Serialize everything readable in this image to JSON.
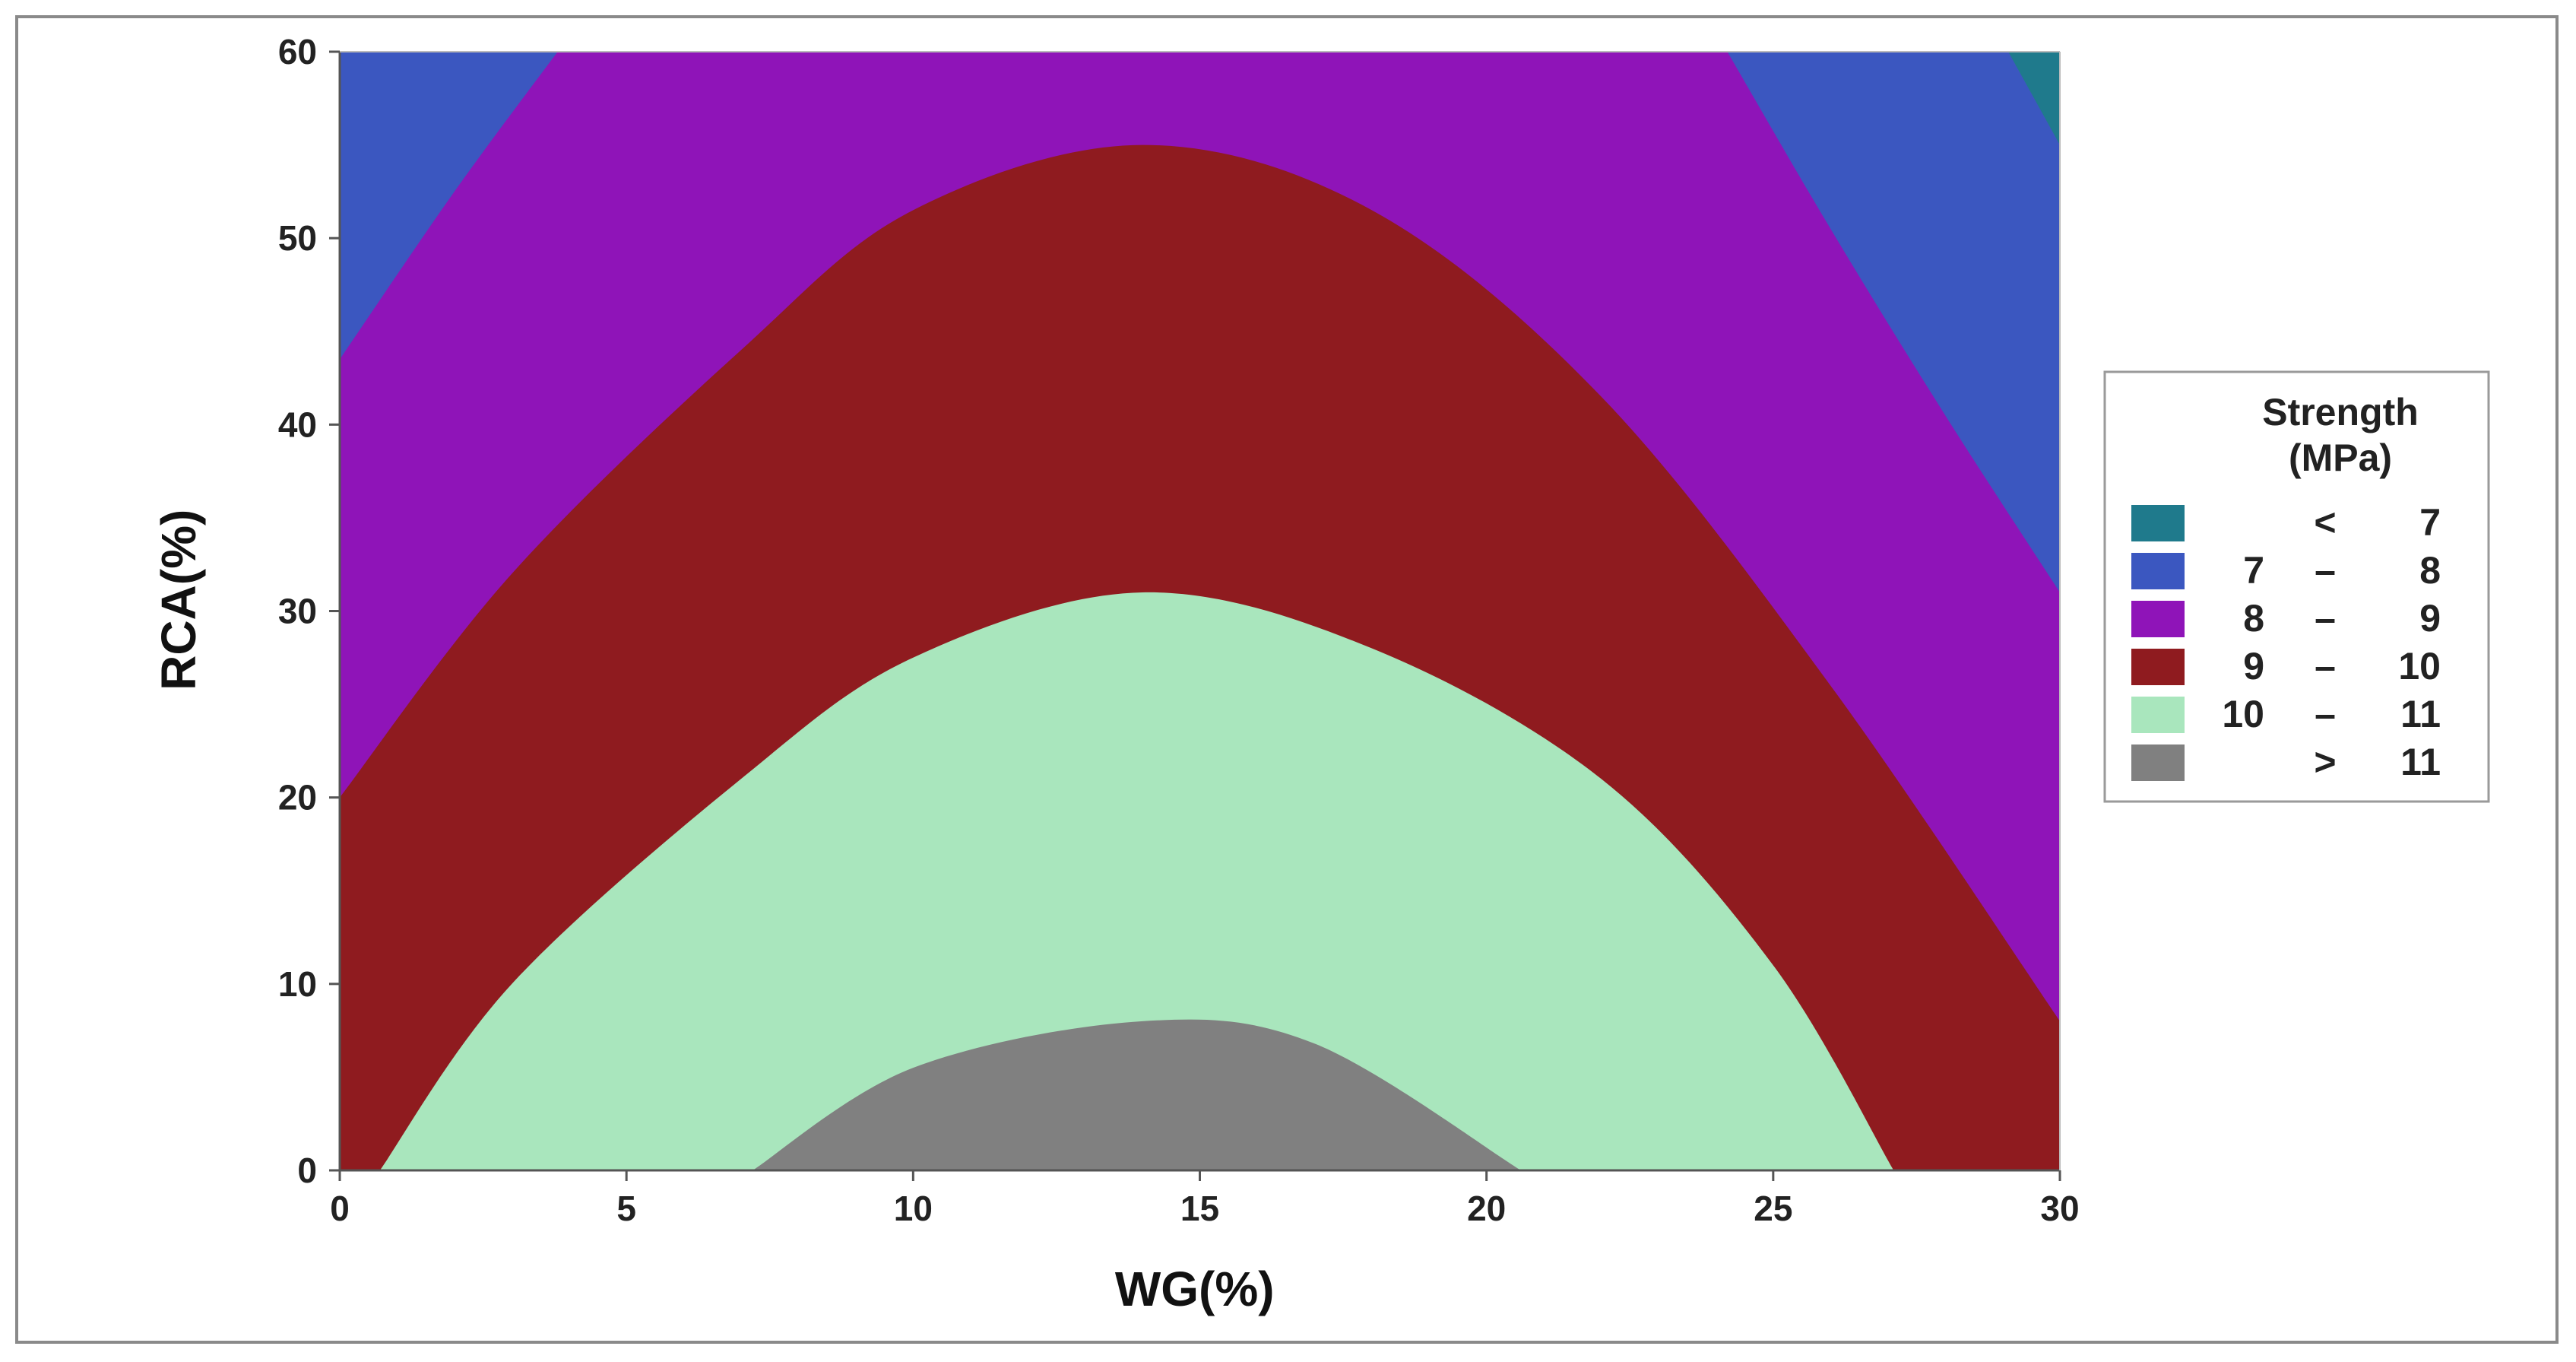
{
  "chart_data": {
    "type": "contour",
    "xlabel": "WG(%)",
    "ylabel": "RCA(%)",
    "xlim": [
      0,
      30
    ],
    "ylim": [
      0,
      60
    ],
    "xticks": [
      0,
      5,
      10,
      15,
      20,
      25,
      30
    ],
    "yticks": [
      0,
      10,
      20,
      30,
      40,
      50,
      60
    ],
    "grid": false,
    "legend_position": "right",
    "legend": {
      "title_line1": "Strength",
      "title_line2": "(MPa)",
      "entries": [
        {
          "c1": "",
          "c2": "<",
          "c3": "7",
          "color": "#1f7a8c"
        },
        {
          "c1": "7",
          "c2": "–",
          "c3": "8",
          "color": "#3b57c0"
        },
        {
          "c1": "8",
          "c2": "–",
          "c3": "9",
          "color": "#8f14b8"
        },
        {
          "c1": "9",
          "c2": "–",
          "c3": "10",
          "color": "#8f1b1f"
        },
        {
          "c1": "10",
          "c2": "–",
          "c3": "11",
          "color": "#a9e6bd"
        },
        {
          "c1": "",
          "c2": ">",
          "c3": "11",
          "color": "#808080"
        }
      ]
    },
    "contour_boundaries": [
      {
        "level": 11,
        "points": [
          [
            7.2,
            0
          ],
          [
            10,
            5.5
          ],
          [
            14,
            8
          ],
          [
            17,
            6.8
          ],
          [
            20.6,
            0
          ]
        ]
      },
      {
        "level": 10,
        "points": [
          [
            0.7,
            0
          ],
          [
            3,
            10
          ],
          [
            7,
            21
          ],
          [
            10,
            27.5
          ],
          [
            14,
            31
          ],
          [
            18,
            28
          ],
          [
            22,
            21
          ],
          [
            25,
            11
          ],
          [
            27.1,
            0
          ]
        ]
      },
      {
        "level": 9,
        "points": [
          [
            0,
            20
          ],
          [
            3,
            32
          ],
          [
            7,
            44
          ],
          [
            10,
            51.5
          ],
          [
            14,
            55
          ],
          [
            18,
            51.5
          ],
          [
            22,
            41.5
          ],
          [
            26,
            26
          ],
          [
            30,
            8
          ]
        ]
      },
      {
        "level": 8,
        "points": [
          [
            0,
            43.5
          ],
          [
            2,
            52.5
          ],
          [
            3.8,
            60
          ],
          [
            24.2,
            60
          ],
          [
            26,
            50.5
          ],
          [
            28,
            40.5
          ],
          [
            30,
            31
          ]
        ]
      },
      {
        "level": 7,
        "points": [
          [
            29.1,
            60
          ],
          [
            30,
            55
          ]
        ]
      }
    ]
  }
}
